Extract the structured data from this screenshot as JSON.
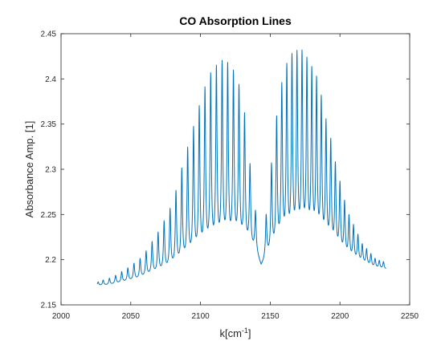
{
  "chart_data": {
    "type": "line",
    "title": "CO Absorption Lines",
    "xlabel_base": "k[cm",
    "xlabel_sup": "-1",
    "xlabel_close": "]",
    "ylabel": "Absorbance Amp. [1]",
    "xlim": [
      2000,
      2250
    ],
    "ylim": [
      2.15,
      2.45
    ],
    "xticks": [
      2000,
      2050,
      2100,
      2150,
      2200,
      2250
    ],
    "yticks": [
      2.15,
      2.2,
      2.25,
      2.3,
      2.35,
      2.4,
      2.45
    ],
    "grid": false,
    "line_color": "#0072BD",
    "series": [
      {
        "x_start": 2026,
        "x_end": 2233,
        "band_center": 2143.3,
        "r_branch_lines": [
          2147.1,
          2150.9,
          2154.6,
          2158.3,
          2161.9,
          2165.6,
          2169.2,
          2172.8,
          2176.3,
          2179.8,
          2183.2,
          2186.6,
          2190.0,
          2193.4,
          2196.7,
          2200.0,
          2203.3,
          2206.5,
          2209.7,
          2212.9,
          2216.0,
          2219.1,
          2222.2,
          2225.2,
          2228.2,
          2231.2
        ],
        "r_branch_peaks": [
          2.245,
          2.3,
          2.35,
          2.385,
          2.405,
          2.415,
          2.418,
          2.418,
          2.41,
          2.4,
          2.39,
          2.37,
          2.345,
          2.325,
          2.3,
          2.28,
          2.26,
          2.245,
          2.235,
          2.225,
          2.215,
          2.21,
          2.205,
          2.2,
          2.198,
          2.197
        ],
        "p_branch_lines": [
          2139.4,
          2135.5,
          2131.6,
          2127.6,
          2123.6,
          2119.5,
          2115.5,
          2111.4,
          2107.3,
          2103.2,
          2099.1,
          2095.0,
          2090.8,
          2086.6,
          2082.4,
          2078.2,
          2073.9,
          2069.6,
          2065.3,
          2061.0,
          2056.7,
          2052.3,
          2047.9,
          2043.5,
          2039.1,
          2034.7,
          2030.2,
          2026.6
        ],
        "p_branch_peaks": [
          2.25,
          2.3,
          2.355,
          2.385,
          2.4,
          2.408,
          2.41,
          2.405,
          2.397,
          2.382,
          2.362,
          2.34,
          2.318,
          2.296,
          2.272,
          2.253,
          2.24,
          2.228,
          2.218,
          2.208,
          2.2,
          2.195,
          2.19,
          2.186,
          2.182,
          2.179,
          2.177,
          2.175
        ],
        "baseline_x": [
          2026,
          2035,
          2045,
          2055,
          2065,
          2075,
          2085,
          2095,
          2105,
          2115,
          2125,
          2135,
          2140,
          2143.5,
          2147,
          2155,
          2165,
          2175,
          2185,
          2195,
          2205,
          2215,
          2225,
          2233
        ],
        "baseline_y": [
          2.171,
          2.172,
          2.175,
          2.178,
          2.183,
          2.187,
          2.193,
          2.2,
          2.205,
          2.21,
          2.213,
          2.212,
          2.206,
          2.19,
          2.2,
          2.208,
          2.213,
          2.214,
          2.212,
          2.207,
          2.2,
          2.195,
          2.19,
          2.189
        ]
      }
    ]
  }
}
